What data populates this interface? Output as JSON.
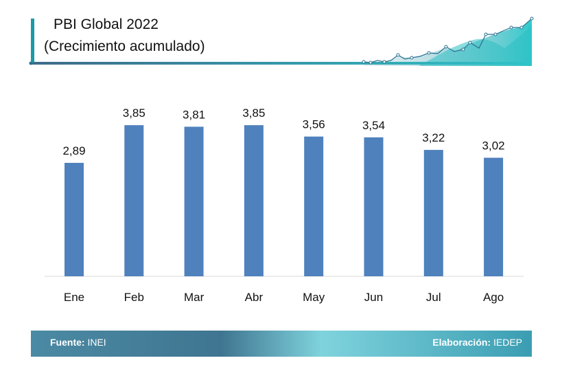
{
  "header": {
    "title": "PBI Global 2022",
    "subtitle": "(Crecimiento acumulado)"
  },
  "colors": {
    "bar": "#4f81bd",
    "accent": "#1a9aa6",
    "footer_text": "#ffffff"
  },
  "chart_data": {
    "type": "bar",
    "title": "PBI Global 2022",
    "subtitle": "(Crecimiento acumulado)",
    "categories": [
      "Ene",
      "Feb",
      "Mar",
      "Abr",
      "May",
      "Jun",
      "Jul",
      "Ago"
    ],
    "values": [
      2.89,
      3.85,
      3.81,
      3.85,
      3.56,
      3.54,
      3.22,
      3.02
    ],
    "value_labels": [
      "2,89",
      "3,85",
      "3,81",
      "3,85",
      "3,56",
      "3,54",
      "3,22",
      "3,02"
    ],
    "ylim": [
      0,
      4.5
    ],
    "grid": false,
    "legend": "none"
  },
  "footer": {
    "source_label": "Fuente:",
    "source_value": "INEI",
    "credit_label": "Elaboración:",
    "credit_value": "IEDEP"
  }
}
